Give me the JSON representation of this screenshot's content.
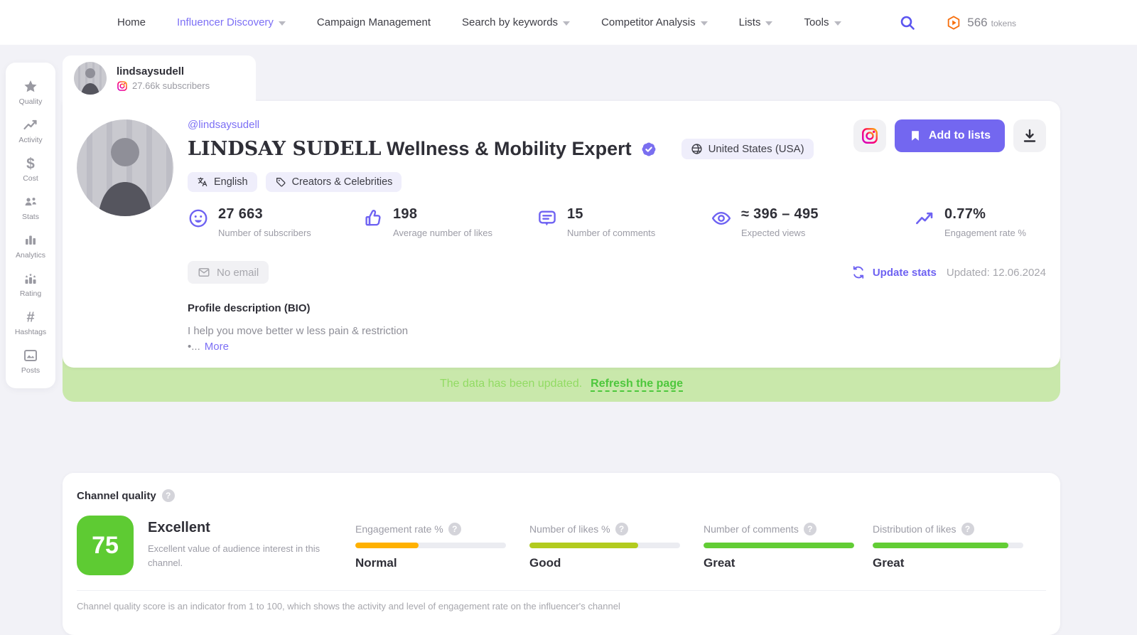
{
  "nav": {
    "items": [
      {
        "label": "Home",
        "active": false,
        "dropdown": false
      },
      {
        "label": "Influencer Discovery",
        "active": true,
        "dropdown": true
      },
      {
        "label": "Campaign Management",
        "active": false,
        "dropdown": false
      },
      {
        "label": "Search by keywords",
        "active": false,
        "dropdown": true
      },
      {
        "label": "Competitor Analysis",
        "active": false,
        "dropdown": true
      },
      {
        "label": "Lists",
        "active": false,
        "dropdown": true
      },
      {
        "label": "Tools",
        "active": false,
        "dropdown": true
      }
    ],
    "tokens_count": "566",
    "tokens_label": "tokens"
  },
  "sidebar": {
    "items": [
      {
        "label": "Quality",
        "icon": "star-icon"
      },
      {
        "label": "Activity",
        "icon": "trend-icon"
      },
      {
        "label": "Cost",
        "icon": "dollar-icon"
      },
      {
        "label": "Stats",
        "icon": "people-icon"
      },
      {
        "label": "Analytics",
        "icon": "bar-chart-icon"
      },
      {
        "label": "Rating",
        "icon": "podium-stars-icon"
      },
      {
        "label": "Hashtags",
        "icon": "hashtag-icon"
      },
      {
        "label": "Posts",
        "icon": "image-icon"
      }
    ]
  },
  "tab": {
    "username": "lindsaysudell",
    "subscribers": "27.66k subscribers"
  },
  "profile": {
    "handle": "@lindsaysudell",
    "name_serif": "LINDSAY SUDELL",
    "name_rest": " Wellness & Mobility Expert",
    "country": "United States (USA)",
    "tags": [
      {
        "label": "English",
        "icon": "translate-icon"
      },
      {
        "label": "Creators & Celebrities",
        "icon": "tag-icon"
      }
    ],
    "stats": [
      {
        "value": "27 663",
        "label": "Number of subscribers",
        "icon": "smiley-icon"
      },
      {
        "value": "198",
        "label": "Average number of likes",
        "icon": "thumbs-up-icon"
      },
      {
        "value": "15",
        "label": "Number of comments",
        "icon": "comment-icon"
      },
      {
        "value": "≈ 396 – 495",
        "label": "Expected views",
        "icon": "eye-icon"
      },
      {
        "value": "0.77%",
        "label": "Engagement rate %",
        "icon": "trend-up-icon"
      }
    ],
    "no_email": "No email",
    "update_stats_label": "Update stats",
    "updated_at": "Updated: 12.06.2024",
    "bio_title": "Profile description (BIO)",
    "bio_line1": "I help you move better w less pain & restriction",
    "bio_line2": "•...",
    "more_label": "More",
    "add_to_lists_label": "Add to lists"
  },
  "banner": {
    "text": "The data has been updated.",
    "link": "Refresh the page"
  },
  "quality": {
    "title": "Channel quality",
    "score": "75",
    "score_color": "#5ecb33",
    "score_label": "Excellent",
    "score_desc": "Excellent value of audience interest in this channel.",
    "metrics": [
      {
        "label": "Engagement rate %",
        "status": "Normal",
        "fill_pct": 42,
        "color": "#ffb100"
      },
      {
        "label": "Number of likes %",
        "status": "Good",
        "fill_pct": 72,
        "color": "#b2cb1e"
      },
      {
        "label": "Number of comments",
        "status": "Great",
        "fill_pct": 100,
        "color": "#62cd35"
      },
      {
        "label": "Distribution of likes",
        "status": "Great",
        "fill_pct": 90,
        "color": "#62cd35"
      }
    ],
    "footer": "Channel quality score is an indicator from 1 to 100, which shows the activity and level of engagement rate on the influencer's channel"
  },
  "colors": {
    "accent_purple": "#7367f0",
    "link_purple": "#7c6ff5",
    "icon_purple": "#6e62f2",
    "banner_bg": "#c9e8ab",
    "banner_text": "#92db64",
    "banner_link": "#4ec73d",
    "token_orange": "#f7700f",
    "page_bg": "#f2f2f7"
  }
}
